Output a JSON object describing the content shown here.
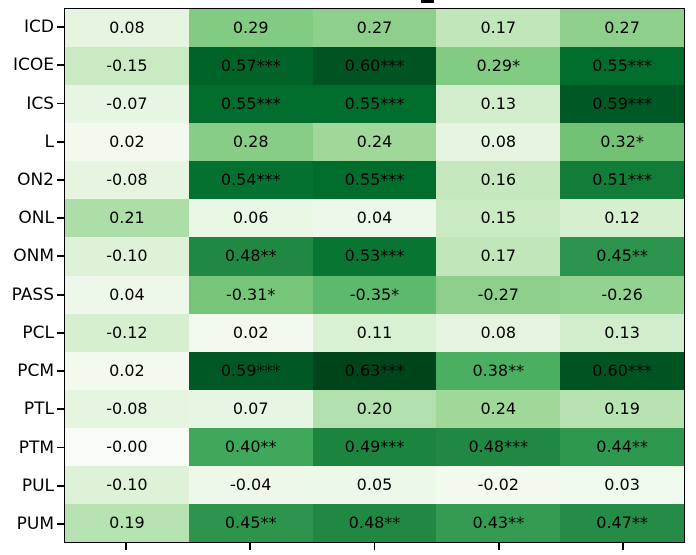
{
  "figure": {
    "background": "#ffffff",
    "spine_color": "#000000",
    "text_color": "#000000",
    "clipped_title_fragment": "_"
  },
  "chart_data": {
    "type": "heatmap",
    "title": "",
    "row_labels": [
      "ICD",
      "ICOE",
      "ICS",
      "L",
      "ON2",
      "ONL",
      "ONM",
      "PASS",
      "PCL",
      "PCM",
      "PTL",
      "PTM",
      "PUL",
      "PUM"
    ],
    "col_count": 5,
    "cell_labels": [
      [
        "0.08",
        "0.29",
        "0.27",
        "0.17",
        "0.27"
      ],
      [
        "-0.15",
        "0.57***",
        "0.60***",
        "0.29*",
        "0.55***"
      ],
      [
        "-0.07",
        "0.55***",
        "0.55***",
        "0.13",
        "0.59***"
      ],
      [
        "0.02",
        "0.28",
        "0.24",
        "0.08",
        "0.32*"
      ],
      [
        "-0.08",
        "0.54***",
        "0.55***",
        "0.16",
        "0.51***"
      ],
      [
        "0.21",
        "0.06",
        "0.04",
        "0.15",
        "0.12"
      ],
      [
        "-0.10",
        "0.48**",
        "0.53***",
        "0.17",
        "0.45**"
      ],
      [
        "0.04",
        "-0.31*",
        "-0.35*",
        "-0.27",
        "-0.26"
      ],
      [
        "-0.12",
        "0.02",
        "0.11",
        "0.08",
        "0.13"
      ],
      [
        "0.02",
        "0.59***",
        "0.63***",
        "0.38**",
        "0.60***"
      ],
      [
        "-0.08",
        "0.07",
        "0.20",
        "0.24",
        "0.19"
      ],
      [
        "-0.00",
        "0.40**",
        "0.49***",
        "0.48***",
        "0.44**"
      ],
      [
        "-0.10",
        "-0.04",
        "0.05",
        "-0.02",
        "0.03"
      ],
      [
        "0.19",
        "0.45**",
        "0.48**",
        "0.43**",
        "0.47**"
      ]
    ],
    "values": [
      [
        0.08,
        0.29,
        0.27,
        0.17,
        0.27
      ],
      [
        -0.15,
        0.57,
        0.6,
        0.29,
        0.55
      ],
      [
        -0.07,
        0.55,
        0.55,
        0.13,
        0.59
      ],
      [
        0.02,
        0.28,
        0.24,
        0.08,
        0.32
      ],
      [
        -0.08,
        0.54,
        0.55,
        0.16,
        0.51
      ],
      [
        0.21,
        0.06,
        0.04,
        0.15,
        0.12
      ],
      [
        -0.1,
        0.48,
        0.53,
        0.17,
        0.45
      ],
      [
        0.04,
        -0.31,
        -0.35,
        -0.27,
        -0.26
      ],
      [
        -0.12,
        0.02,
        0.11,
        0.08,
        0.13
      ],
      [
        0.02,
        0.59,
        0.63,
        0.38,
        0.6
      ],
      [
        -0.08,
        0.07,
        0.2,
        0.24,
        0.19
      ],
      [
        0.0,
        0.4,
        0.49,
        0.48,
        0.44
      ],
      [
        -0.1,
        -0.04,
        0.05,
        -0.02,
        0.03
      ],
      [
        0.19,
        0.45,
        0.48,
        0.43,
        0.47
      ]
    ],
    "color_scale": {
      "mapping": "absolute_value",
      "vmin": 0,
      "vmax": 0.63,
      "colormap_anchors": [
        [
          0.0,
          "#f7fcf5"
        ],
        [
          0.125,
          "#e5f5e0"
        ],
        [
          0.25,
          "#c7e9c0"
        ],
        [
          0.375,
          "#a1d99b"
        ],
        [
          0.5,
          "#74c476"
        ],
        [
          0.625,
          "#41ab5d"
        ],
        [
          0.75,
          "#238b45"
        ],
        [
          0.875,
          "#006d2c"
        ],
        [
          1.0,
          "#00441b"
        ]
      ]
    },
    "legend": "none",
    "grid": "off"
  }
}
